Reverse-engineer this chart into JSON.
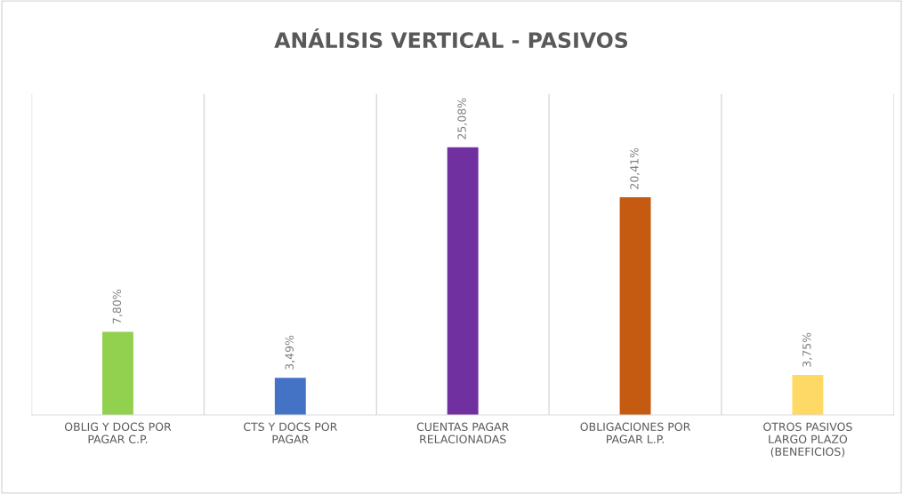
{
  "chart_data": {
    "type": "bar",
    "title": "ANÁLISIS VERTICAL - PASIVOS",
    "categories": [
      "OBLIG Y DOCS POR PAGAR C.P.",
      "CTS Y DOCS POR PAGAR",
      "CUENTAS PAGAR RELACIONADAS",
      "OBLIGACIONES POR PAGAR L.P.",
      "OTROS PASIVOS LARGO PLAZO (BENEFICIOS)"
    ],
    "values": [
      7.8,
      3.49,
      25.08,
      20.41,
      3.75
    ],
    "colors": [
      "#92d050",
      "#4472c4",
      "#7030a0",
      "#c55a11",
      "#ffd966"
    ],
    "value_labels": [
      "7,80%",
      "3,49%",
      "25,08%",
      "20,41%",
      "3,75%"
    ],
    "grid": "x"
  }
}
